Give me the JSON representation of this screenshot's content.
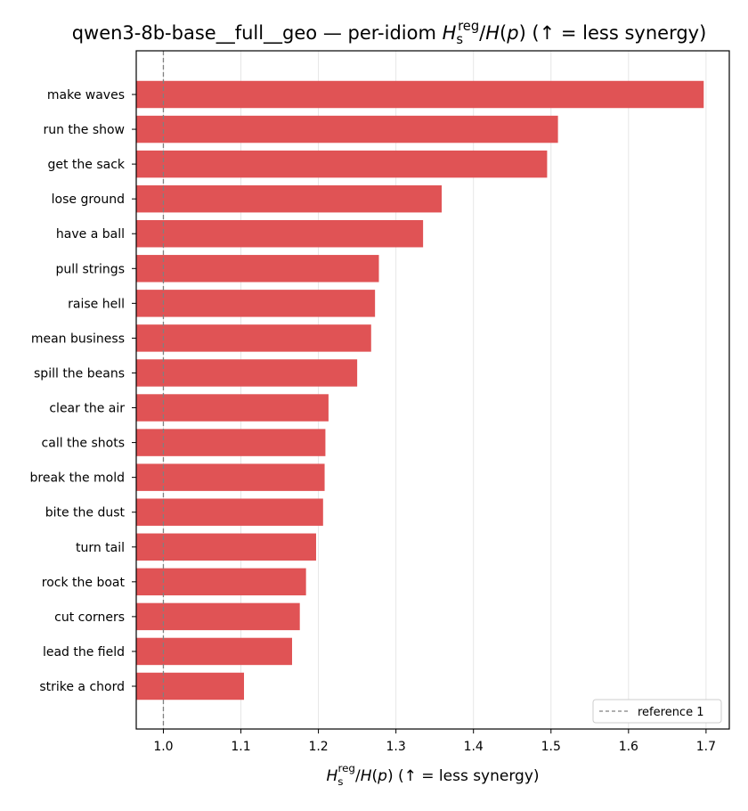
{
  "chart_data": {
    "type": "bar",
    "orientation": "horizontal",
    "title": "qwen3-8b-base__full__geo — per-idiom H_s^reg/H(p)  (↑ = less synergy)",
    "xlabel": "H_s^reg/H(p)  (↑ = less synergy)",
    "xlim": [
      0.965,
      1.73
    ],
    "xticks": [
      "1.0",
      "1.1",
      "1.2",
      "1.3",
      "1.4",
      "1.5",
      "1.6",
      "1.7"
    ],
    "xgrid": true,
    "bar_color": "#e05355",
    "reference": {
      "value": 1.0,
      "label": "reference 1",
      "color": "#808080",
      "style": "dashed"
    },
    "legend_position": "lower-right",
    "categories": [
      "make waves",
      "run the show",
      "get the sack",
      "lose ground",
      "have a ball",
      "pull strings",
      "raise hell",
      "mean business",
      "spill the beans",
      "clear the air",
      "call the shots",
      "break the mold",
      "bite the dust",
      "turn tail",
      "rock the boat",
      "cut corners",
      "lead the field",
      "strike a chord"
    ],
    "values": [
      1.697,
      1.509,
      1.495,
      1.359,
      1.335,
      1.278,
      1.273,
      1.268,
      1.25,
      1.213,
      1.209,
      1.208,
      1.206,
      1.197,
      1.184,
      1.176,
      1.166,
      1.104
    ]
  }
}
